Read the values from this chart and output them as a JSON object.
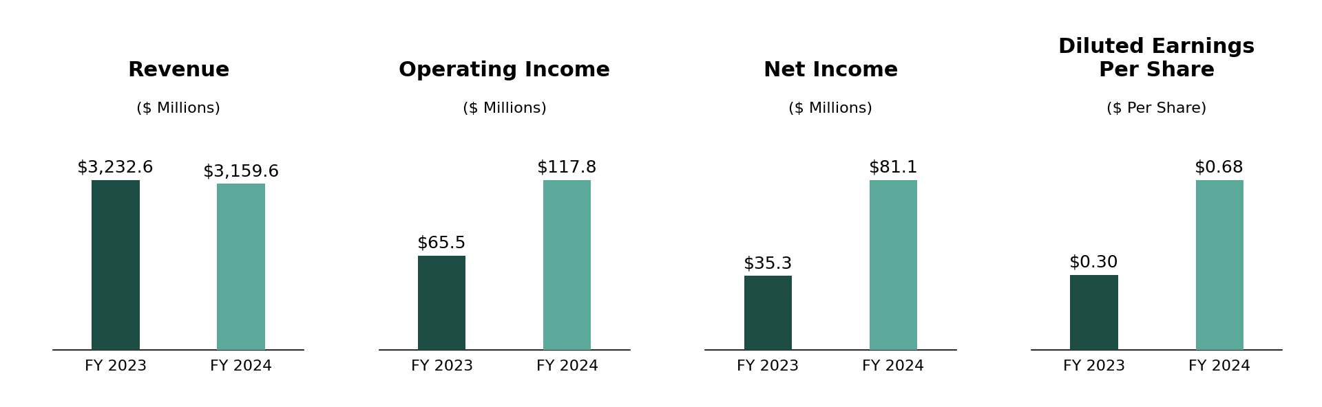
{
  "charts": [
    {
      "title": "Revenue",
      "subtitle": "($ Millions)",
      "values": [
        3232.6,
        3159.6
      ],
      "labels": [
        "$3,232.6",
        "$3,159.6"
      ],
      "categories": [
        "FY 2023",
        "FY 2024"
      ]
    },
    {
      "title": "Operating Income",
      "subtitle": "($ Millions)",
      "values": [
        65.5,
        117.8
      ],
      "labels": [
        "$65.5",
        "$117.8"
      ],
      "categories": [
        "FY 2023",
        "FY 2024"
      ]
    },
    {
      "title": "Net Income",
      "subtitle": "($ Millions)",
      "values": [
        35.3,
        81.1
      ],
      "labels": [
        "$35.3",
        "$81.1"
      ],
      "categories": [
        "FY 2023",
        "FY 2024"
      ]
    },
    {
      "title": "Diluted Earnings\nPer Share",
      "subtitle": "($ Per Share)",
      "values": [
        0.3,
        0.68
      ],
      "labels": [
        "$0.30",
        "$0.68"
      ],
      "categories": [
        "FY 2023",
        "FY 2024"
      ]
    }
  ],
  "color_2023": "#1e4d45",
  "color_2024": "#5ba99a",
  "background_color": "#ffffff",
  "title_fontsize": 22,
  "subtitle_fontsize": 16,
  "label_fontsize": 18,
  "tick_fontsize": 16,
  "bar_width": 0.38
}
